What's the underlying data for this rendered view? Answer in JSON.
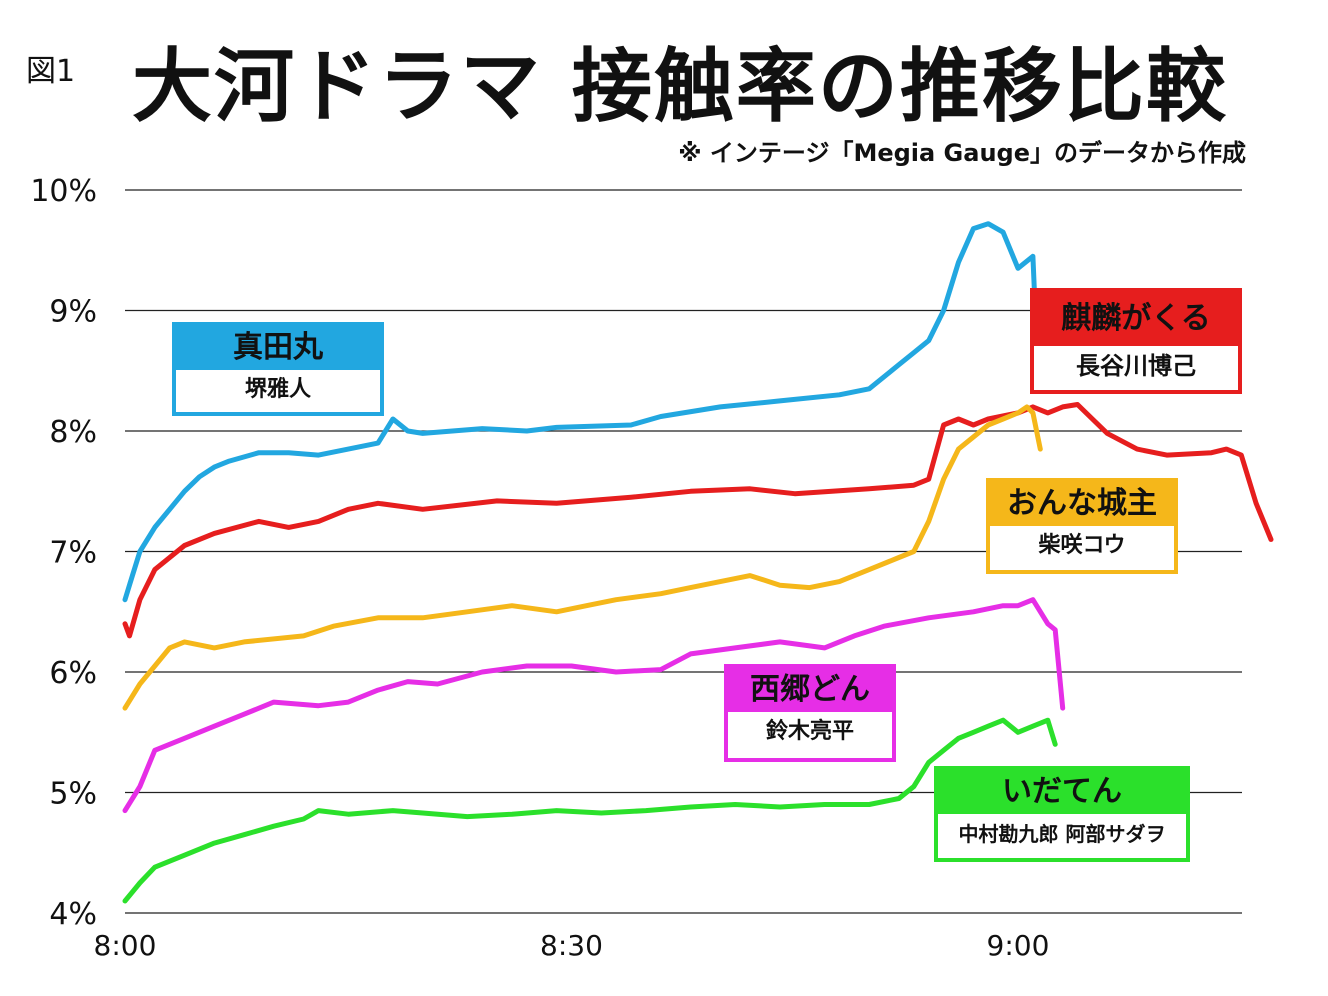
{
  "figure_label": "図1",
  "title": "大河ドラマ 接触率の推移比較",
  "subtitle": "※ インテージ「Megia Gauge」のデータから作成",
  "chart_data": {
    "type": "line",
    "ylim": [
      4,
      10
    ],
    "xlim": [
      0,
      77
    ],
    "yticks": [
      "4%",
      "5%",
      "6%",
      "7%",
      "8%",
      "9%",
      "10%"
    ],
    "xticks": [
      {
        "label": "8:00",
        "minute": 0
      },
      {
        "label": "8:30",
        "minute": 30
      },
      {
        "label": "9:00",
        "minute": 60
      }
    ],
    "grid": true,
    "series": [
      {
        "name": "真田丸",
        "cast": "堺雅人",
        "color": "#22A7E0",
        "points": [
          [
            0,
            6.6
          ],
          [
            0.5,
            6.8
          ],
          [
            1,
            7.0
          ],
          [
            2,
            7.2
          ],
          [
            3,
            7.35
          ],
          [
            4,
            7.5
          ],
          [
            5,
            7.62
          ],
          [
            6,
            7.7
          ],
          [
            7,
            7.75
          ],
          [
            9,
            7.82
          ],
          [
            11,
            7.82
          ],
          [
            13,
            7.8
          ],
          [
            15,
            7.85
          ],
          [
            17,
            7.9
          ],
          [
            18,
            8.1
          ],
          [
            19,
            8.0
          ],
          [
            20,
            7.98
          ],
          [
            24,
            8.02
          ],
          [
            27,
            8.0
          ],
          [
            29,
            8.03
          ],
          [
            34,
            8.05
          ],
          [
            36,
            8.12
          ],
          [
            40,
            8.2
          ],
          [
            44,
            8.25
          ],
          [
            48,
            8.3
          ],
          [
            50,
            8.35
          ],
          [
            51,
            8.45
          ],
          [
            52,
            8.55
          ],
          [
            53,
            8.65
          ],
          [
            54,
            8.75
          ],
          [
            55,
            9.0
          ],
          [
            56,
            9.4
          ],
          [
            57,
            9.68
          ],
          [
            58,
            9.72
          ],
          [
            59,
            9.65
          ],
          [
            60,
            9.35
          ],
          [
            61,
            9.45
          ],
          [
            61.3,
            8.6
          ]
        ]
      },
      {
        "name": "麒麟がくる",
        "cast": "長谷川博己",
        "color": "#E61E1E",
        "points": [
          [
            0,
            6.4
          ],
          [
            0.3,
            6.3
          ],
          [
            1,
            6.6
          ],
          [
            2,
            6.85
          ],
          [
            4,
            7.05
          ],
          [
            6,
            7.15
          ],
          [
            9,
            7.25
          ],
          [
            11,
            7.2
          ],
          [
            13,
            7.25
          ],
          [
            15,
            7.35
          ],
          [
            17,
            7.4
          ],
          [
            20,
            7.35
          ],
          [
            25,
            7.42
          ],
          [
            29,
            7.4
          ],
          [
            34,
            7.45
          ],
          [
            38,
            7.5
          ],
          [
            42,
            7.52
          ],
          [
            45,
            7.48
          ],
          [
            50,
            7.52
          ],
          [
            53,
            7.55
          ],
          [
            54,
            7.6
          ],
          [
            55,
            8.05
          ],
          [
            56,
            8.1
          ],
          [
            57,
            8.05
          ],
          [
            58,
            8.1
          ],
          [
            60,
            8.15
          ],
          [
            61,
            8.2
          ],
          [
            62,
            8.15
          ],
          [
            63,
            8.2
          ],
          [
            64,
            8.22
          ],
          [
            65,
            8.1
          ],
          [
            66,
            7.98
          ],
          [
            68,
            7.85
          ],
          [
            70,
            7.8
          ],
          [
            73,
            7.82
          ],
          [
            74,
            7.85
          ],
          [
            75,
            7.8
          ],
          [
            76,
            7.4
          ],
          [
            77,
            7.1
          ]
        ]
      },
      {
        "name": "おんな城主",
        "cast": "柴咲コウ",
        "color": "#F5B71A",
        "points": [
          [
            0,
            5.7
          ],
          [
            1,
            5.9
          ],
          [
            2,
            6.05
          ],
          [
            3,
            6.2
          ],
          [
            4,
            6.25
          ],
          [
            6,
            6.2
          ],
          [
            8,
            6.25
          ],
          [
            12,
            6.3
          ],
          [
            14,
            6.38
          ],
          [
            17,
            6.45
          ],
          [
            20,
            6.45
          ],
          [
            23,
            6.5
          ],
          [
            26,
            6.55
          ],
          [
            29,
            6.5
          ],
          [
            31,
            6.55
          ],
          [
            33,
            6.6
          ],
          [
            36,
            6.65
          ],
          [
            38,
            6.7
          ],
          [
            40,
            6.75
          ],
          [
            42,
            6.8
          ],
          [
            44,
            6.72
          ],
          [
            46,
            6.7
          ],
          [
            48,
            6.75
          ],
          [
            50,
            6.85
          ],
          [
            52,
            6.95
          ],
          [
            53,
            7.0
          ],
          [
            54,
            7.25
          ],
          [
            55,
            7.6
          ],
          [
            56,
            7.85
          ],
          [
            57,
            7.95
          ],
          [
            58,
            8.05
          ],
          [
            59,
            8.1
          ],
          [
            60,
            8.15
          ],
          [
            60.6,
            8.2
          ],
          [
            61,
            8.15
          ],
          [
            61.5,
            7.85
          ]
        ]
      },
      {
        "name": "西郷どん",
        "cast": "鈴木亮平",
        "color": "#E62EE6",
        "points": [
          [
            0,
            4.85
          ],
          [
            1,
            5.05
          ],
          [
            2,
            5.35
          ],
          [
            4,
            5.45
          ],
          [
            6,
            5.55
          ],
          [
            8,
            5.65
          ],
          [
            10,
            5.75
          ],
          [
            13,
            5.72
          ],
          [
            15,
            5.75
          ],
          [
            17,
            5.85
          ],
          [
            19,
            5.92
          ],
          [
            21,
            5.9
          ],
          [
            24,
            6.0
          ],
          [
            27,
            6.05
          ],
          [
            30,
            6.05
          ],
          [
            33,
            6.0
          ],
          [
            36,
            6.02
          ],
          [
            38,
            6.15
          ],
          [
            41,
            6.2
          ],
          [
            44,
            6.25
          ],
          [
            47,
            6.2
          ],
          [
            49,
            6.3
          ],
          [
            51,
            6.38
          ],
          [
            54,
            6.45
          ],
          [
            57,
            6.5
          ],
          [
            59,
            6.55
          ],
          [
            60,
            6.55
          ],
          [
            61,
            6.6
          ],
          [
            62,
            6.4
          ],
          [
            62.5,
            6.35
          ],
          [
            63,
            5.7
          ]
        ]
      },
      {
        "name": "いだてん",
        "cast": "中村勘九郎 阿部サダヲ",
        "color": "#2BE02B",
        "points": [
          [
            0,
            4.1
          ],
          [
            1,
            4.25
          ],
          [
            2,
            4.38
          ],
          [
            4,
            4.48
          ],
          [
            6,
            4.58
          ],
          [
            8,
            4.65
          ],
          [
            10,
            4.72
          ],
          [
            12,
            4.78
          ],
          [
            13,
            4.85
          ],
          [
            15,
            4.82
          ],
          [
            18,
            4.85
          ],
          [
            20,
            4.83
          ],
          [
            23,
            4.8
          ],
          [
            26,
            4.82
          ],
          [
            29,
            4.85
          ],
          [
            32,
            4.83
          ],
          [
            35,
            4.85
          ],
          [
            38,
            4.88
          ],
          [
            41,
            4.9
          ],
          [
            44,
            4.88
          ],
          [
            47,
            4.9
          ],
          [
            50,
            4.9
          ],
          [
            52,
            4.95
          ],
          [
            53,
            5.05
          ],
          [
            54,
            5.25
          ],
          [
            55,
            5.35
          ],
          [
            56,
            5.45
          ],
          [
            57,
            5.5
          ],
          [
            58,
            5.55
          ],
          [
            59,
            5.6
          ],
          [
            60,
            5.5
          ],
          [
            61,
            5.55
          ],
          [
            62,
            5.6
          ],
          [
            62.5,
            5.4
          ]
        ]
      }
    ]
  }
}
